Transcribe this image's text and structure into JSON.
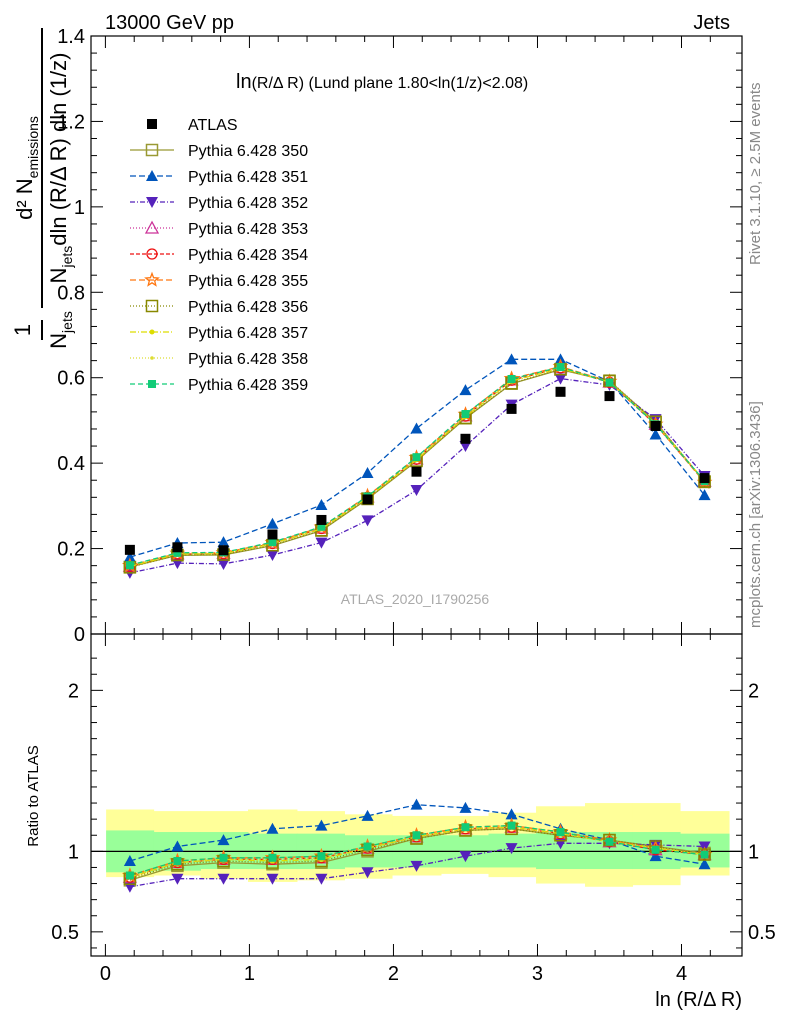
{
  "header": {
    "left": "13000 GeV pp",
    "right": "Jets"
  },
  "plot_title_main": "ln",
  "plot_title_rest": "(R/Δ R) (Lund plane 1.80<ln(1/z)<2.08)",
  "side_text_top": "Rivet 3.1.10, ≥ 2.5M events",
  "side_text_bottom": "mcplots.cern.ch [arXiv:1306.3436]",
  "watermark": "ATLAS_2020_I1790256",
  "ylabel_main": "1/N_jets d²N_emissions / dln(R/ΔR) dln(1/z)",
  "ylabel_ratio": "Ratio to ATLAS",
  "xlabel": "ln (R/Δ R)",
  "colors": {
    "data": "#000000",
    "band_inner": "#99ff99",
    "band_outer": "#ffff99",
    "p350": "#999933",
    "p351": "#0055bb",
    "p352": "#5522bb",
    "p353": "#cc3399",
    "p354": "#ee1111",
    "p355": "#ff7711",
    "p356": "#888800",
    "p357": "#dddd00",
    "p358": "#dddd33",
    "p359": "#11cc77"
  },
  "chart_data": {
    "type": "line",
    "x": [
      0.17,
      0.5,
      0.82,
      1.16,
      1.5,
      1.82,
      2.16,
      2.5,
      2.82,
      3.16,
      3.5,
      3.82,
      4.16
    ],
    "main": {
      "xlim": [
        -0.1,
        4.42
      ],
      "ylim": [
        0,
        1.4
      ],
      "yticks": [
        0,
        0.2,
        0.4,
        0.6,
        0.8,
        1,
        1.2,
        1.4
      ],
      "ytick_labels": [
        "0",
        "0.2",
        "0.4",
        "0.6",
        "0.8",
        "1",
        "1.2",
        "1.4"
      ]
    },
    "ratio": {
      "ylim": [
        0.35,
        2.35
      ],
      "yticks": [
        0.5,
        1,
        2
      ],
      "ytick_labels": [
        "0.5",
        "1",
        "2"
      ],
      "band_inner": [
        [
          0.87,
          1.13
        ],
        [
          0.88,
          1.12
        ],
        [
          0.89,
          1.12
        ],
        [
          0.89,
          1.11
        ],
        [
          0.89,
          1.11
        ],
        [
          0.9,
          1.1
        ],
        [
          0.9,
          1.1
        ],
        [
          0.9,
          1.1
        ],
        [
          0.9,
          1.11
        ],
        [
          0.89,
          1.12
        ],
        [
          0.89,
          1.12
        ],
        [
          0.89,
          1.12
        ],
        [
          0.9,
          1.11
        ]
      ],
      "band_outer": [
        [
          0.84,
          1.26
        ],
        [
          0.85,
          1.25
        ],
        [
          0.83,
          1.25
        ],
        [
          0.81,
          1.26
        ],
        [
          0.82,
          1.25
        ],
        [
          0.83,
          1.23
        ],
        [
          0.85,
          1.22
        ],
        [
          0.86,
          1.22
        ],
        [
          0.84,
          1.24
        ],
        [
          0.8,
          1.28
        ],
        [
          0.78,
          1.3
        ],
        [
          0.79,
          1.3
        ],
        [
          0.85,
          1.25
        ]
      ]
    },
    "xticks": [
      0,
      1,
      2,
      3,
      4
    ],
    "xtick_labels": [
      "0",
      "1",
      "2",
      "3",
      "4"
    ],
    "data": {
      "name": "ATLAS",
      "values": [
        0.197,
        0.203,
        0.196,
        0.233,
        0.267,
        0.315,
        0.38,
        0.457,
        0.527,
        0.567,
        0.557,
        0.487,
        0.365
      ]
    },
    "series": [
      {
        "name": "Pythia 6.428 350",
        "key": "p350",
        "dash": "",
        "marker": "square-open",
        "values": [
          0.157,
          0.184,
          0.185,
          0.207,
          0.242,
          0.316,
          0.405,
          0.505,
          0.586,
          0.619,
          0.592,
          0.496,
          0.356
        ],
        "ratio": [
          0.82,
          0.91,
          0.93,
          0.92,
          0.93,
          1.0,
          1.08,
          1.13,
          1.14,
          1.1,
          1.07,
          1.03,
          0.99
        ]
      },
      {
        "name": "Pythia 6.428 351",
        "key": "p351",
        "dash": "6,3",
        "marker": "triangle-up",
        "values": [
          0.18,
          0.213,
          0.215,
          0.258,
          0.302,
          0.377,
          0.481,
          0.571,
          0.643,
          0.643,
          0.591,
          0.467,
          0.325
        ],
        "ratio": [
          0.94,
          1.03,
          1.07,
          1.14,
          1.16,
          1.22,
          1.29,
          1.27,
          1.23,
          1.14,
          1.07,
          0.97,
          0.92
        ]
      },
      {
        "name": "Pythia 6.428 352",
        "key": "p352",
        "dash": "5,2,1,2",
        "marker": "triangle-down",
        "values": [
          0.143,
          0.166,
          0.164,
          0.185,
          0.214,
          0.266,
          0.337,
          0.44,
          0.537,
          0.598,
          0.583,
          0.503,
          0.37
        ],
        "ratio": [
          0.78,
          0.83,
          0.83,
          0.83,
          0.83,
          0.87,
          0.91,
          0.97,
          1.02,
          1.05,
          1.05,
          1.04,
          1.03
        ]
      },
      {
        "name": "Pythia 6.428 353",
        "key": "p353",
        "dash": "1,2",
        "marker": "triangle-open",
        "values": [
          0.159,
          0.188,
          0.189,
          0.213,
          0.248,
          0.321,
          0.41,
          0.511,
          0.595,
          0.624,
          0.59,
          0.491,
          0.358
        ],
        "ratio": [
          0.84,
          0.93,
          0.95,
          0.95,
          0.96,
          1.02,
          1.09,
          1.14,
          1.15,
          1.11,
          1.06,
          1.01,
          0.98
        ]
      },
      {
        "name": "Pythia 6.428 354",
        "key": "p354",
        "dash": "4,2",
        "marker": "circle-open",
        "values": [
          0.158,
          0.187,
          0.188,
          0.212,
          0.247,
          0.32,
          0.409,
          0.51,
          0.594,
          0.623,
          0.589,
          0.49,
          0.357
        ],
        "ratio": [
          0.84,
          0.93,
          0.95,
          0.95,
          0.96,
          1.02,
          1.09,
          1.14,
          1.15,
          1.11,
          1.06,
          1.01,
          0.98
        ]
      },
      {
        "name": "Pythia 6.428 355",
        "key": "p355",
        "dash": "6,3",
        "marker": "star-open",
        "values": [
          0.16,
          0.189,
          0.19,
          0.214,
          0.25,
          0.323,
          0.413,
          0.514,
          0.598,
          0.626,
          0.591,
          0.491,
          0.355
        ],
        "ratio": [
          0.85,
          0.94,
          0.96,
          0.96,
          0.97,
          1.03,
          1.1,
          1.15,
          1.16,
          1.12,
          1.07,
          1.02,
          0.98
        ]
      },
      {
        "name": "Pythia 6.428 356",
        "key": "p356",
        "dash": "1,2",
        "marker": "square-open",
        "values": [
          0.156,
          0.185,
          0.186,
          0.208,
          0.243,
          0.317,
          0.406,
          0.506,
          0.587,
          0.62,
          0.593,
          0.497,
          0.357
        ],
        "ratio": [
          0.83,
          0.92,
          0.94,
          0.93,
          0.94,
          1.01,
          1.08,
          1.13,
          1.14,
          1.1,
          1.07,
          1.03,
          0.98
        ]
      },
      {
        "name": "Pythia 6.428 357",
        "key": "p357",
        "dash": "6,2,1,2",
        "marker": "dot",
        "values": [
          0.158,
          0.187,
          0.188,
          0.211,
          0.246,
          0.319,
          0.408,
          0.509,
          0.592,
          0.622,
          0.59,
          0.493,
          0.358
        ],
        "ratio": [
          0.84,
          0.93,
          0.95,
          0.94,
          0.95,
          1.02,
          1.09,
          1.14,
          1.15,
          1.11,
          1.06,
          1.02,
          0.98
        ]
      },
      {
        "name": "Pythia 6.428 358",
        "key": "p358",
        "dash": "1,2",
        "marker": "dot-small",
        "values": [
          0.159,
          0.188,
          0.189,
          0.212,
          0.247,
          0.32,
          0.409,
          0.51,
          0.593,
          0.623,
          0.59,
          0.492,
          0.357
        ],
        "ratio": [
          0.84,
          0.93,
          0.95,
          0.95,
          0.96,
          1.02,
          1.09,
          1.14,
          1.15,
          1.11,
          1.06,
          1.02,
          0.98
        ]
      },
      {
        "name": "Pythia 6.428 359",
        "key": "p359",
        "dash": "5,3",
        "marker": "square-filled",
        "values": [
          0.161,
          0.19,
          0.191,
          0.215,
          0.251,
          0.322,
          0.414,
          0.515,
          0.597,
          0.625,
          0.589,
          0.491,
          0.358
        ],
        "ratio": [
          0.85,
          0.94,
          0.96,
          0.96,
          0.97,
          1.03,
          1.1,
          1.15,
          1.16,
          1.12,
          1.06,
          1.01,
          0.98
        ]
      }
    ]
  }
}
